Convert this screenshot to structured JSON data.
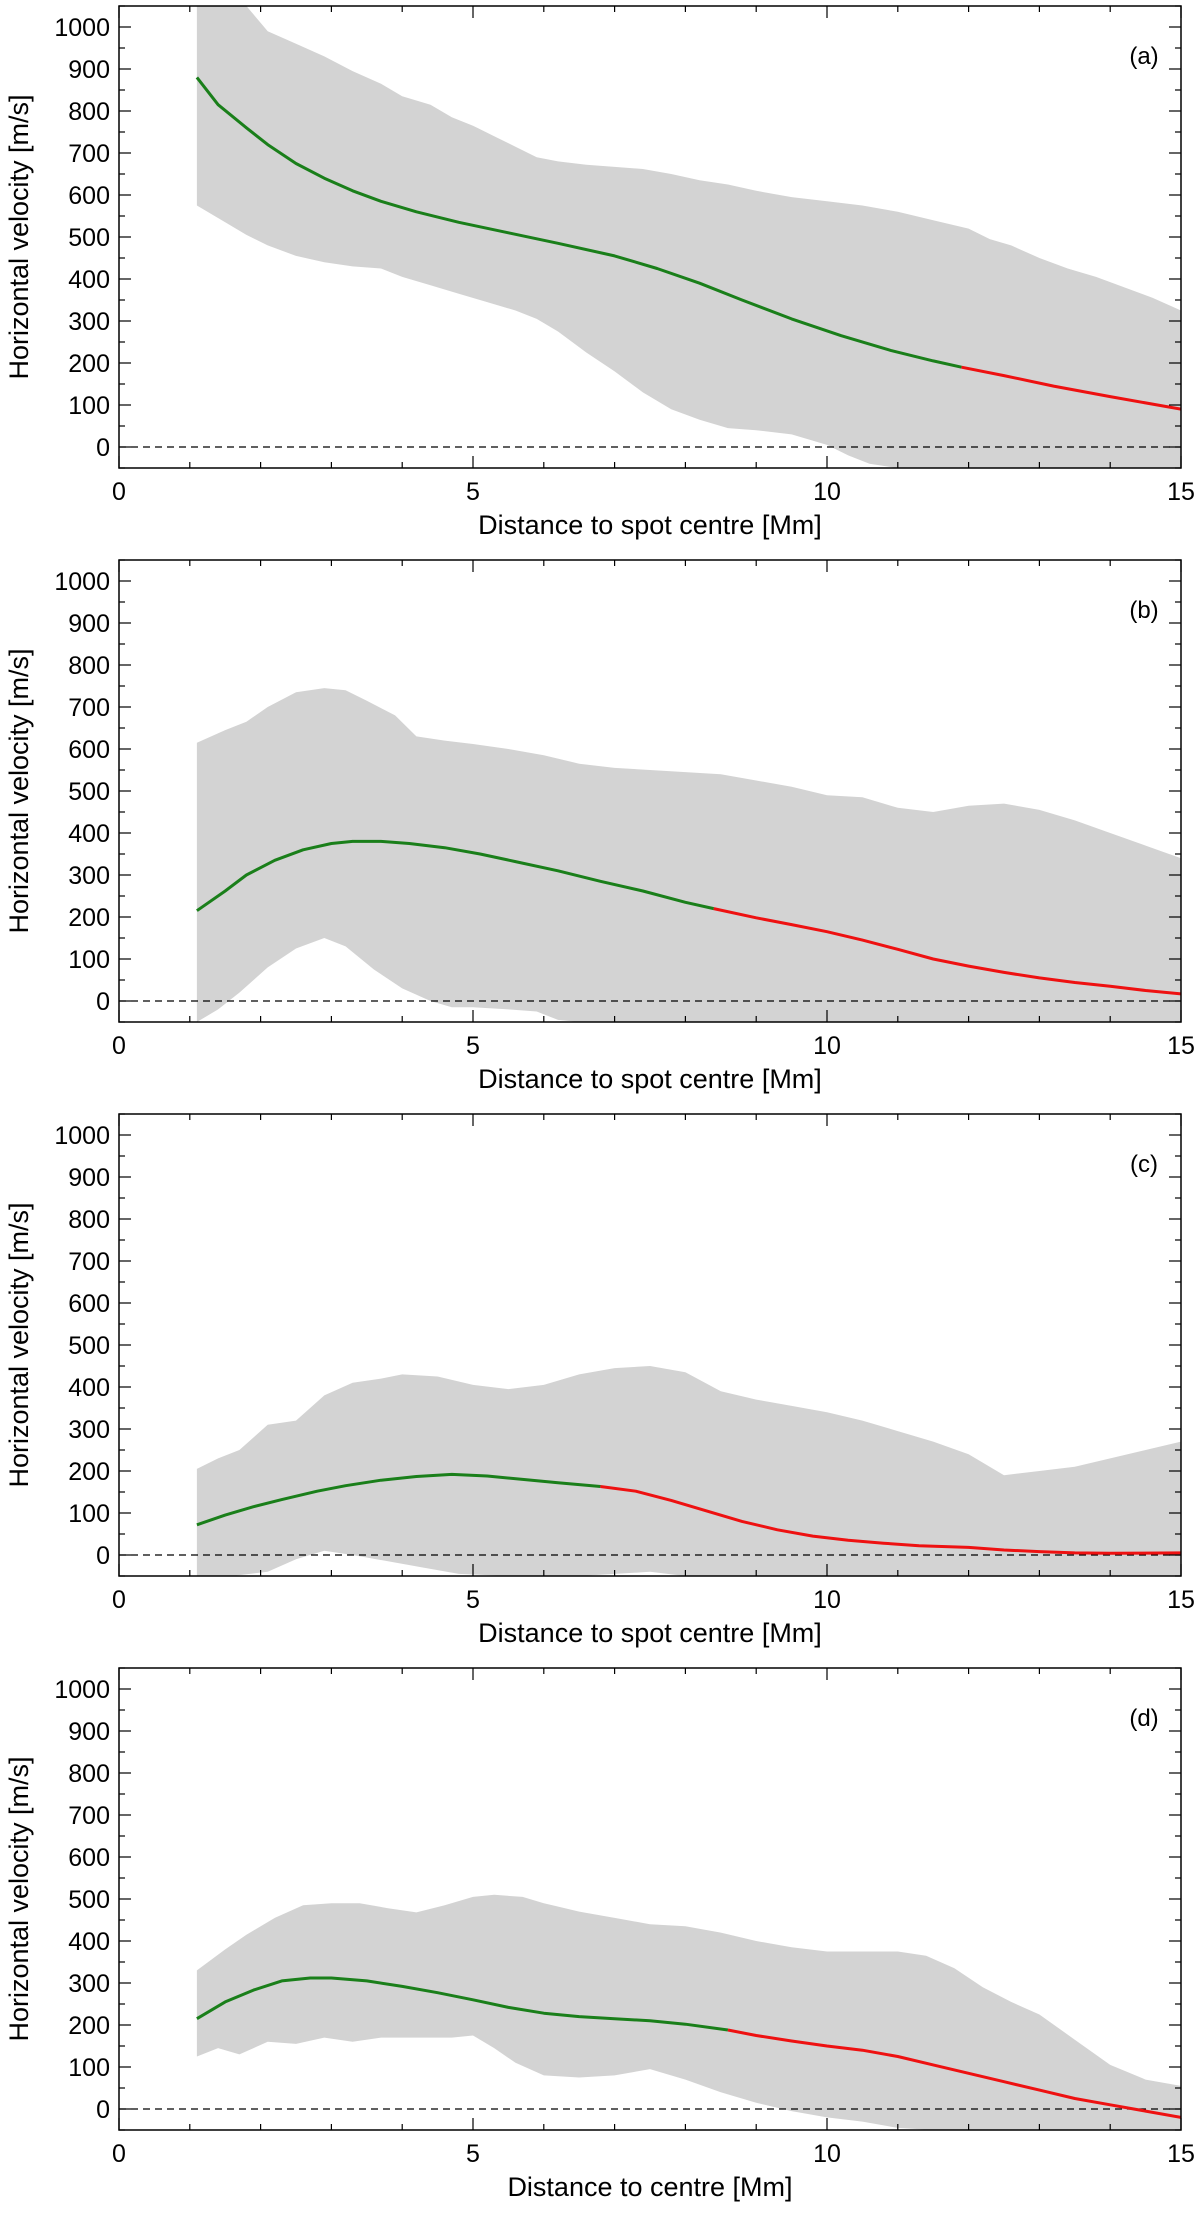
{
  "colors": {
    "band": "#d3d3d3",
    "mean_near": "#1a7f1a",
    "mean_far": "#ee1111",
    "zero_line": "#000000",
    "axes": "#000000"
  },
  "chart_data": [
    {
      "type": "line",
      "panel_label": "(a)",
      "xlabel": "Distance to spot centre [Mm]",
      "ylabel": "Horizontal velocity [m/s]",
      "xlim": [
        0,
        15
      ],
      "ylim": [
        -50,
        1050
      ],
      "xticks": [
        0,
        5,
        10,
        15
      ],
      "yticks": [
        0,
        100,
        200,
        300,
        400,
        500,
        600,
        700,
        800,
        900,
        1000
      ],
      "zero_line": "dashed",
      "band_upper": {
        "x": [
          1.1,
          1.5,
          1.8,
          2.1,
          2.5,
          2.9,
          3.3,
          3.7,
          4.0,
          4.4,
          4.7,
          5.0,
          5.3,
          5.6,
          5.9,
          6.2,
          6.6,
          7.0,
          7.4,
          7.8,
          8.2,
          8.6,
          9.0,
          9.5,
          10.0,
          10.5,
          11.0,
          11.5,
          12.0,
          12.3,
          12.6,
          13.0,
          13.4,
          13.8,
          14.2,
          14.6,
          15.0
        ],
        "y": [
          1100,
          1100,
          1100,
          990,
          960,
          930,
          895,
          865,
          835,
          815,
          785,
          765,
          740,
          715,
          690,
          680,
          672,
          667,
          662,
          650,
          635,
          625,
          610,
          595,
          585,
          575,
          560,
          540,
          520,
          495,
          480,
          450,
          425,
          405,
          380,
          355,
          325
        ]
      },
      "band_lower": {
        "x": [
          1.1,
          1.5,
          1.8,
          2.1,
          2.5,
          2.9,
          3.3,
          3.7,
          4.0,
          4.4,
          4.8,
          5.2,
          5.6,
          5.9,
          6.2,
          6.6,
          7.0,
          7.4,
          7.8,
          8.2,
          8.6,
          9.0,
          9.5,
          10.0,
          10.3,
          10.6,
          11.0,
          11.5,
          12.0,
          12.5,
          13.0,
          13.5,
          14.0,
          14.5,
          15.0
        ],
        "y": [
          575,
          535,
          505,
          480,
          455,
          440,
          430,
          425,
          405,
          385,
          365,
          345,
          325,
          305,
          275,
          225,
          180,
          130,
          90,
          65,
          45,
          40,
          30,
          5,
          -20,
          -40,
          -60,
          -60,
          -60,
          -60,
          -60,
          -60,
          -60,
          -60,
          -60
        ]
      },
      "series": [
        {
          "x": [
            1.1,
            1.4,
            1.8,
            2.1,
            2.5,
            2.9,
            3.3,
            3.7,
            4.2,
            4.8,
            5.5,
            6.2,
            7.0,
            7.6,
            8.2,
            8.8,
            9.5,
            10.2,
            10.9,
            11.5,
            11.9
          ],
          "y": [
            880,
            815,
            760,
            720,
            675,
            640,
            610,
            585,
            560,
            535,
            510,
            485,
            455,
            425,
            390,
            350,
            305,
            265,
            230,
            205,
            190
          ]
        },
        {
          "x": [
            11.9,
            12.5,
            13.2,
            14.0,
            15.0
          ],
          "y": [
            190,
            170,
            145,
            120,
            90
          ]
        }
      ]
    },
    {
      "type": "line",
      "panel_label": "(b)",
      "xlabel": "Distance to spot centre [Mm]",
      "ylabel": "Horizontal velocity [m/s]",
      "xlim": [
        0,
        15
      ],
      "ylim": [
        -50,
        1050
      ],
      "xticks": [
        0,
        5,
        10,
        15
      ],
      "yticks": [
        0,
        100,
        200,
        300,
        400,
        500,
        600,
        700,
        800,
        900,
        1000
      ],
      "zero_line": "dashed",
      "band_upper": {
        "x": [
          1.1,
          1.5,
          1.8,
          2.1,
          2.5,
          2.9,
          3.2,
          3.5,
          3.9,
          4.2,
          4.6,
          5.0,
          5.5,
          6.0,
          6.5,
          7.0,
          7.5,
          8.0,
          8.5,
          9.0,
          9.5,
          10.0,
          10.5,
          11.0,
          11.5,
          12.0,
          12.5,
          13.0,
          13.5,
          14.0,
          14.5,
          15.0
        ],
        "y": [
          615,
          645,
          665,
          700,
          735,
          745,
          740,
          715,
          680,
          630,
          620,
          612,
          600,
          585,
          565,
          555,
          550,
          545,
          540,
          525,
          510,
          490,
          485,
          460,
          450,
          465,
          470,
          455,
          430,
          400,
          370,
          340
        ]
      },
      "band_lower": {
        "x": [
          1.1,
          1.4,
          1.7,
          2.1,
          2.5,
          2.9,
          3.2,
          3.6,
          4.0,
          4.4,
          4.7,
          5.0,
          5.5,
          5.9,
          6.2,
          6.5,
          7.0,
          8.0,
          9.0,
          10.0,
          11.0,
          12.0,
          13.0,
          14.0,
          15.0
        ],
        "y": [
          -60,
          -20,
          20,
          80,
          125,
          150,
          130,
          75,
          30,
          0,
          -15,
          -15,
          -20,
          -25,
          -45,
          -60,
          -60,
          -60,
          -60,
          -60,
          -60,
          -60,
          -60,
          -60,
          -60
        ]
      },
      "series": [
        {
          "x": [
            1.1,
            1.5,
            1.8,
            2.2,
            2.6,
            3.0,
            3.3,
            3.7,
            4.1,
            4.6,
            5.1,
            5.6,
            6.2,
            6.8,
            7.4,
            8.0,
            8.4
          ],
          "y": [
            215,
            262,
            300,
            335,
            360,
            375,
            380,
            380,
            375,
            365,
            350,
            332,
            310,
            285,
            262,
            235,
            220
          ]
        },
        {
          "x": [
            8.4,
            9.0,
            9.5,
            10.0,
            10.5,
            11.0,
            11.5,
            12.0,
            12.5,
            13.0,
            13.5,
            14.0,
            14.5,
            15.0
          ],
          "y": [
            220,
            198,
            182,
            165,
            145,
            123,
            100,
            83,
            68,
            55,
            44,
            35,
            25,
            17
          ]
        }
      ]
    },
    {
      "type": "line",
      "panel_label": "(c)",
      "xlabel": "Distance to spot centre [Mm]",
      "ylabel": "Horizontal velocity [m/s]",
      "xlim": [
        0,
        15
      ],
      "ylim": [
        -50,
        1050
      ],
      "xticks": [
        0,
        5,
        10,
        15
      ],
      "yticks": [
        0,
        100,
        200,
        300,
        400,
        500,
        600,
        700,
        800,
        900,
        1000
      ],
      "zero_line": "dashed",
      "band_upper": {
        "x": [
          1.1,
          1.4,
          1.7,
          2.1,
          2.5,
          2.9,
          3.3,
          3.7,
          4.0,
          4.5,
          5.0,
          5.5,
          6.0,
          6.5,
          7.0,
          7.5,
          8.0,
          8.5,
          9.0,
          9.5,
          10.0,
          10.5,
          11.0,
          11.5,
          12.0,
          12.5,
          13.0,
          13.5,
          14.0,
          14.5,
          15.0
        ],
        "y": [
          205,
          230,
          250,
          310,
          320,
          380,
          410,
          420,
          430,
          425,
          405,
          395,
          405,
          430,
          445,
          450,
          435,
          390,
          370,
          355,
          340,
          320,
          295,
          270,
          240,
          190,
          200,
          210,
          230,
          250,
          270
        ]
      },
      "band_lower": {
        "x": [
          1.1,
          1.6,
          2.1,
          2.5,
          2.9,
          3.3,
          3.8,
          4.3,
          4.8,
          5.5,
          6.5,
          7.0,
          7.5,
          8.0,
          9.0,
          10.0,
          11.0,
          12.0,
          13.0,
          14.0,
          15.0
        ],
        "y": [
          -60,
          -60,
          -40,
          -10,
          10,
          0,
          -15,
          -30,
          -45,
          -60,
          -60,
          -45,
          -40,
          -60,
          -60,
          -60,
          -60,
          -60,
          -60,
          -60,
          -60
        ]
      },
      "series": [
        {
          "x": [
            1.1,
            1.5,
            1.9,
            2.3,
            2.8,
            3.2,
            3.7,
            4.2,
            4.7,
            5.2,
            5.7,
            6.2,
            6.8
          ],
          "y": [
            72,
            95,
            115,
            132,
            152,
            165,
            178,
            187,
            192,
            188,
            180,
            172,
            163
          ]
        },
        {
          "x": [
            6.8,
            7.3,
            7.8,
            8.3,
            8.8,
            9.3,
            9.8,
            10.3,
            10.8,
            11.3,
            12.0,
            12.5,
            13.0,
            13.5,
            14.0,
            15.0
          ],
          "y": [
            163,
            152,
            130,
            105,
            80,
            60,
            45,
            35,
            28,
            22,
            18,
            12,
            8,
            5,
            4,
            5
          ]
        }
      ]
    },
    {
      "type": "line",
      "panel_label": "(d)",
      "xlabel": "Distance to centre [Mm]",
      "ylabel": "Horizontal velocity [m/s]",
      "xlim": [
        0,
        15
      ],
      "ylim": [
        -50,
        1050
      ],
      "xticks": [
        0,
        5,
        10,
        15
      ],
      "yticks": [
        0,
        100,
        200,
        300,
        400,
        500,
        600,
        700,
        800,
        900,
        1000
      ],
      "zero_line": "dashed",
      "band_upper": {
        "x": [
          1.1,
          1.5,
          1.8,
          2.2,
          2.6,
          3.0,
          3.4,
          3.8,
          4.2,
          4.6,
          5.0,
          5.3,
          5.7,
          6.0,
          6.5,
          7.0,
          7.5,
          8.0,
          8.5,
          9.0,
          9.5,
          10.0,
          10.5,
          11.0,
          11.4,
          11.8,
          12.2,
          12.6,
          13.0,
          13.5,
          14.0,
          14.5,
          15.0
        ],
        "y": [
          330,
          380,
          415,
          455,
          485,
          490,
          490,
          478,
          468,
          485,
          505,
          510,
          505,
          490,
          470,
          455,
          440,
          435,
          420,
          400,
          385,
          375,
          375,
          375,
          365,
          335,
          290,
          255,
          225,
          165,
          105,
          70,
          55
        ]
      },
      "band_lower": {
        "x": [
          1.1,
          1.4,
          1.7,
          2.1,
          2.5,
          2.9,
          3.3,
          3.7,
          4.2,
          4.7,
          5.0,
          5.3,
          5.6,
          6.0,
          6.5,
          7.0,
          7.5,
          8.0,
          8.5,
          9.0,
          9.5,
          10.0,
          10.5,
          11.0,
          11.5,
          12.0,
          13.0,
          14.0,
          15.0
        ],
        "y": [
          125,
          145,
          130,
          160,
          155,
          170,
          160,
          170,
          170,
          170,
          175,
          145,
          110,
          80,
          75,
          80,
          95,
          70,
          40,
          15,
          -5,
          -20,
          -30,
          -45,
          -60,
          -60,
          -60,
          -60,
          -60
        ]
      },
      "series": [
        {
          "x": [
            1.1,
            1.5,
            1.9,
            2.3,
            2.7,
            3.0,
            3.5,
            4.0,
            4.5,
            5.0,
            5.5,
            6.0,
            6.5,
            7.0,
            7.5,
            8.0,
            8.6
          ],
          "y": [
            215,
            255,
            283,
            305,
            312,
            312,
            305,
            292,
            277,
            260,
            242,
            228,
            220,
            215,
            210,
            202,
            188
          ]
        },
        {
          "x": [
            8.6,
            9.0,
            9.5,
            10.0,
            10.5,
            11.0,
            11.5,
            12.0,
            12.5,
            13.0,
            13.5,
            14.0,
            14.5,
            15.0
          ],
          "y": [
            188,
            175,
            162,
            150,
            140,
            125,
            105,
            85,
            65,
            45,
            25,
            10,
            -5,
            -20
          ]
        }
      ]
    }
  ]
}
